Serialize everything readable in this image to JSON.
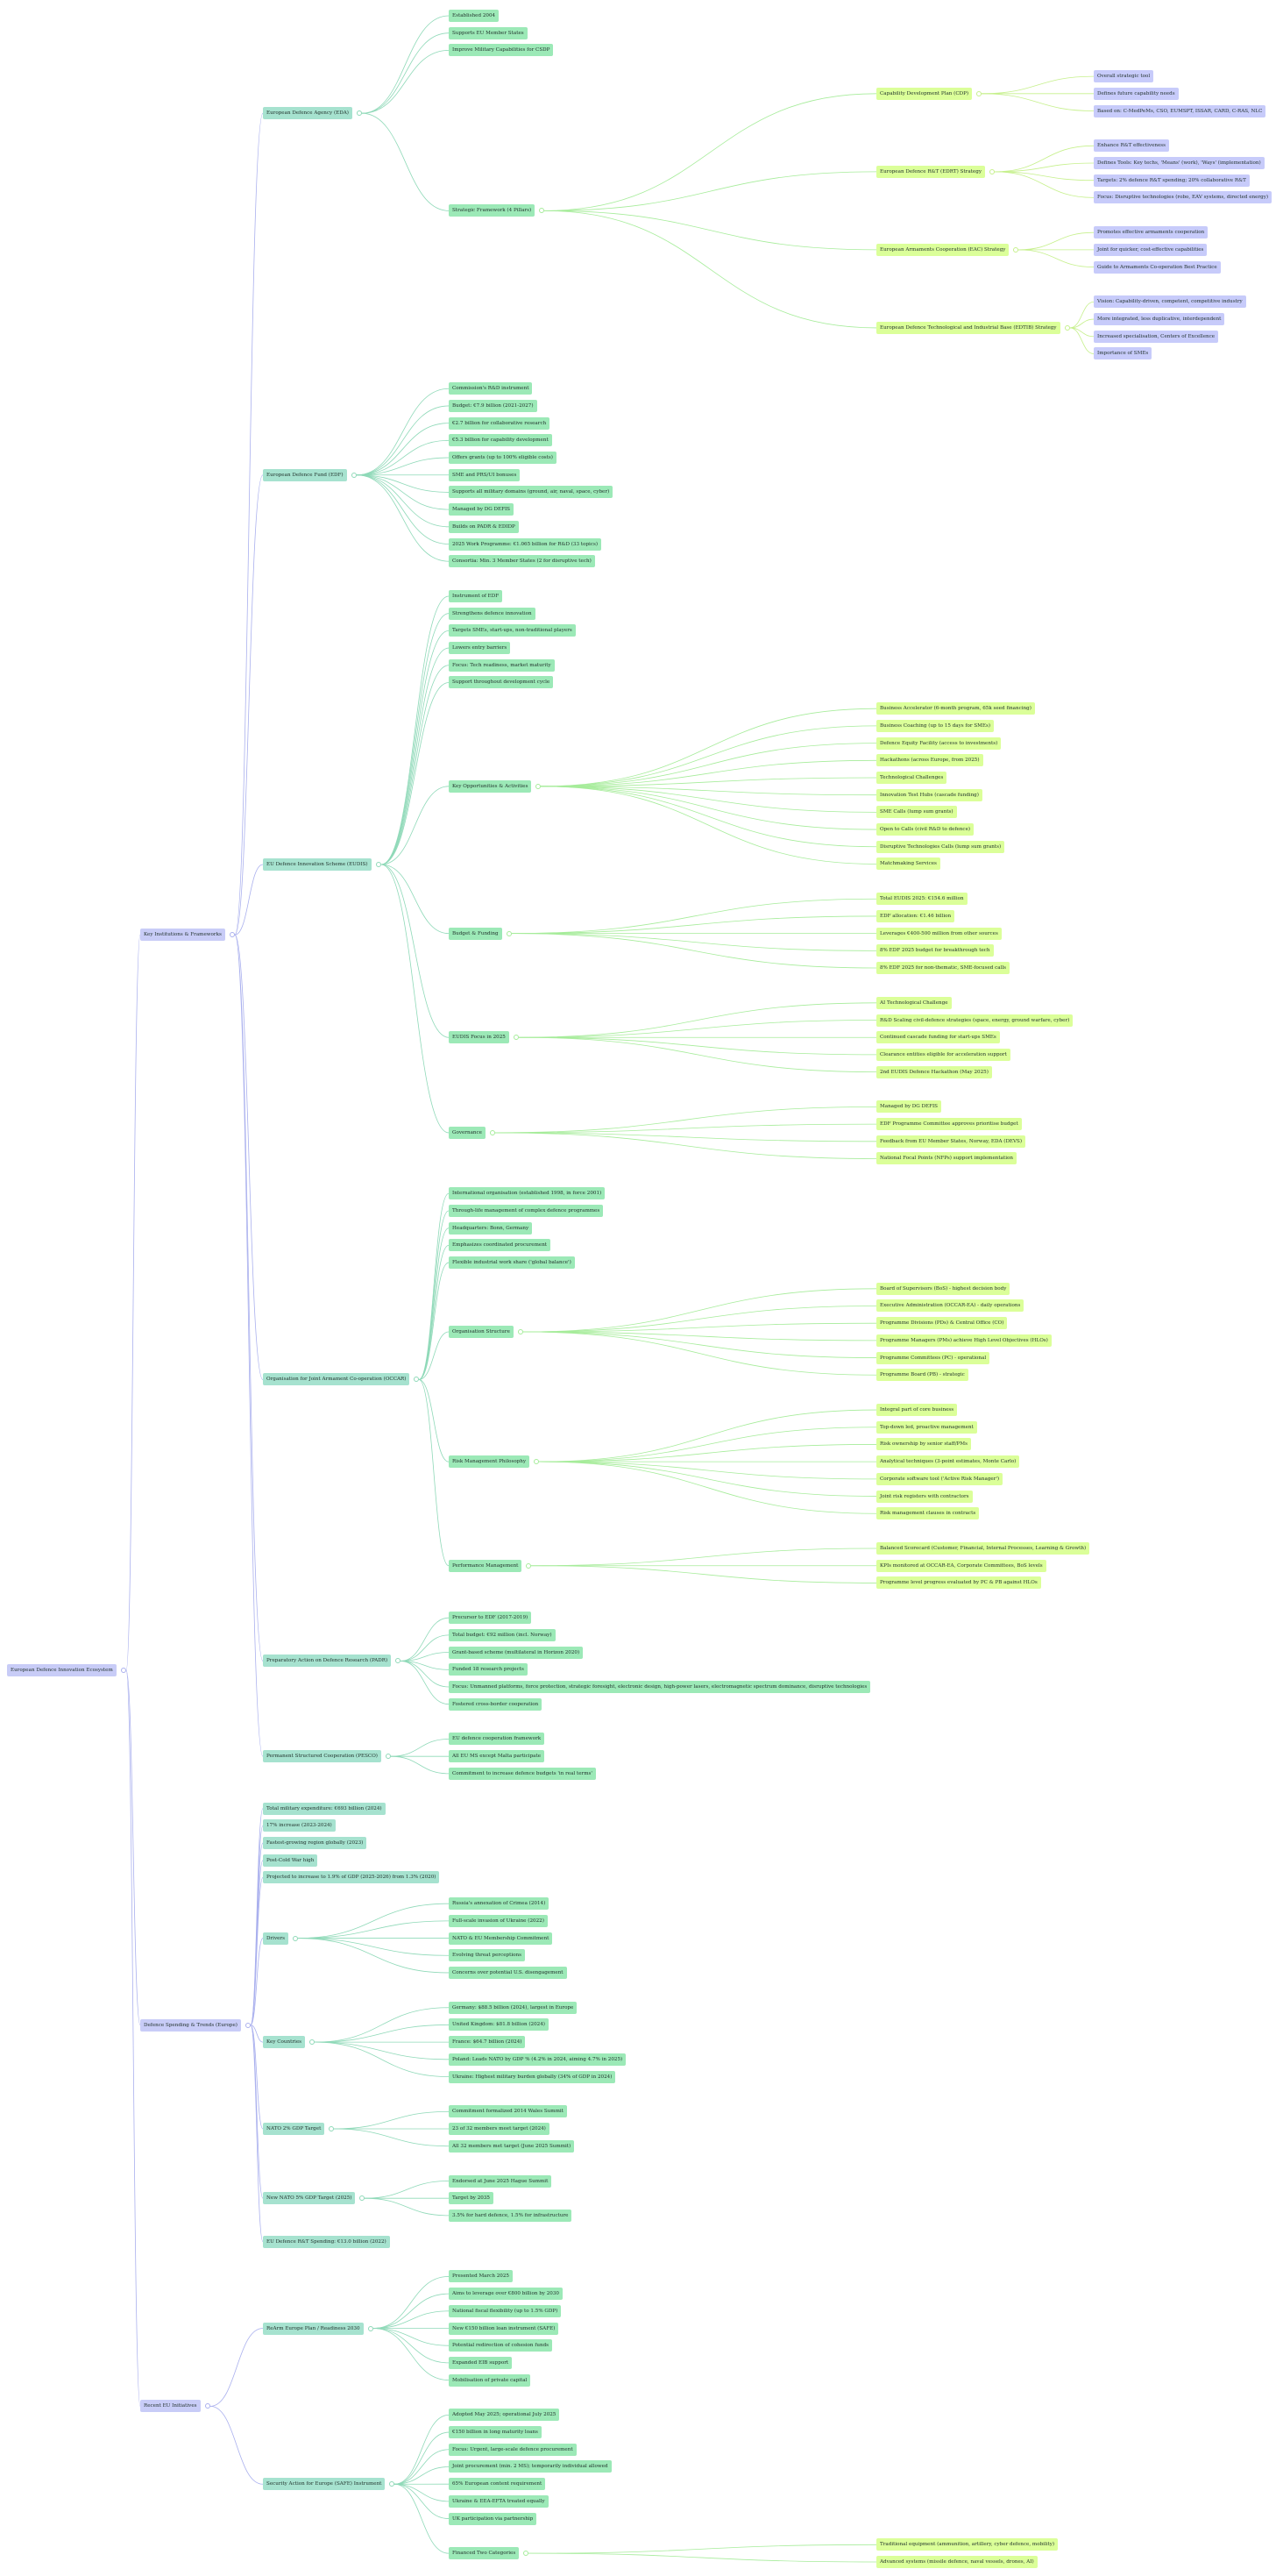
{
  "colors": {
    "level0": "#c8ccf7",
    "level1": "#c8ccf7",
    "level2": "#a6e2cf",
    "level3": "#9ce9b7",
    "level4": "#dbff99",
    "level5": "#c7cbfa"
  },
  "tree": {
    "label": "European Defence Innovation Ecosystem",
    "children": [
      {
        "label": "Key Institutions & Frameworks",
        "children": [
          {
            "label": "European Defence Agency (EDA)",
            "children": [
              {
                "label": "Established 2004"
              },
              {
                "label": "Supports EU Member States"
              },
              {
                "label": "Improve Military Capabilities for CSDP"
              },
              {
                "label": "Strategic Framework (4 Pillars)",
                "children": [
                  {
                    "label": "Capability Development Plan (CDP)",
                    "children": [
                      {
                        "label": "Overall strategic tool"
                      },
                      {
                        "label": "Defines future capability needs"
                      },
                      {
                        "label": "Based on: C-MedPeMs, CSO, EUMSPT, ISSAR, CARD, C-RAS, NLC"
                      }
                    ]
                  },
                  {
                    "label": "European Defence R&T (EDRT) Strategy",
                    "children": [
                      {
                        "label": "Enhance R&T effectiveness"
                      },
                      {
                        "label": "Defines Tools: Key techs, 'Means' (work), 'Ways' (implementation)"
                      },
                      {
                        "label": "Targets: 2% defence R&T spending; 20% collaborative R&T"
                      },
                      {
                        "label": "Focus: Disruptive technologies (robo, EAV systems, directed energy)"
                      }
                    ]
                  },
                  {
                    "label": "European Armaments Cooperation (EAC) Strategy",
                    "children": [
                      {
                        "label": "Promotes effective armaments cooperation"
                      },
                      {
                        "label": "Joint for quicker, cost-effective capabilities"
                      },
                      {
                        "label": "Guide to Armaments Co-operation Best Practice"
                      }
                    ]
                  },
                  {
                    "label": "European Defence Technological and Industrial Base (EDTIB) Strategy",
                    "children": [
                      {
                        "label": "Vision: Capability-driven, competent, competitive industry"
                      },
                      {
                        "label": "More integrated, less duplicative, interdependent"
                      },
                      {
                        "label": "Increased specialisation, Centers of Excellence"
                      },
                      {
                        "label": "Importance of SMEs"
                      }
                    ]
                  }
                ]
              }
            ]
          },
          {
            "label": "European Defence Fund (EDF)",
            "children": [
              {
                "label": "Commission's R&D instrument"
              },
              {
                "label": "Budget: €7.9 billion (2021-2027)"
              },
              {
                "label": "€2.7 billion for collaborative research"
              },
              {
                "label": "€5.3 billion for capability development"
              },
              {
                "label": "Offers grants (up to 100% eligible costs)"
              },
              {
                "label": "SME and PRS/UI bonuses"
              },
              {
                "label": "Supports all military domains (ground, air, naval, space, cyber)"
              },
              {
                "label": "Managed by DG DEFIS"
              },
              {
                "label": "Builds on PADR & EDIDP"
              },
              {
                "label": "2025 Work Programme: €1.065 billion for R&D (33 topics)"
              },
              {
                "label": "Consortia: Min. 3 Member States (2 for disruptive tech)"
              }
            ]
          },
          {
            "label": "EU Defence Innovation Scheme (EUDIS)",
            "children": [
              {
                "label": "Instrument of EDF"
              },
              {
                "label": "Strengthens defence innovation"
              },
              {
                "label": "Targets SMEs, start-ups, non-traditional players"
              },
              {
                "label": "Lowers entry barriers"
              },
              {
                "label": "Focus: Tech readiness, market maturity"
              },
              {
                "label": "Support throughout development cycle"
              },
              {
                "label": "Key Opportunities & Activities",
                "children": [
                  {
                    "label": "Business Accelerator (6-month program, 65k seed financing)"
                  },
                  {
                    "label": "Business Coaching (up to 15 days for SMEs)"
                  },
                  {
                    "label": "Defence Equity Facility (access to investments)"
                  },
                  {
                    "label": "Hackathons (across Europe, from 2025)"
                  },
                  {
                    "label": "Technological Challenges"
                  },
                  {
                    "label": "Innovation Test Hubs (cascade funding)"
                  },
                  {
                    "label": "SME Calls (lump sum grants)"
                  },
                  {
                    "label": "Open to Calls (civil R&D to defence)"
                  },
                  {
                    "label": "Disruptive Technologies Calls (lump sum grants)"
                  },
                  {
                    "label": "Matchmaking Services"
                  }
                ]
              },
              {
                "label": "Budget & Funding",
                "children": [
                  {
                    "label": "Total EUDIS 2025: €154.6 million"
                  },
                  {
                    "label": "EDF allocation: €1.46 billion"
                  },
                  {
                    "label": "Leverages €400-500 million from other sources"
                  },
                  {
                    "label": "8% EDF 2025 budget for breakthrough tech"
                  },
                  {
                    "label": "8% EDF 2025 for non-thematic, SME-focused calls"
                  }
                ]
              },
              {
                "label": "EUDIS Focus in 2025",
                "children": [
                  {
                    "label": "AI Technological Challenge"
                  },
                  {
                    "label": "R&D Scaling civil-defence strategies (space, energy, ground warfare, cyber)"
                  },
                  {
                    "label": "Continued cascade funding for start-ups SMEs"
                  },
                  {
                    "label": "Clearance entities eligible for acceleration support"
                  },
                  {
                    "label": "2nd EUDIS Defence Hackathon (May 2025)"
                  }
                ]
              },
              {
                "label": "Governance",
                "children": [
                  {
                    "label": "Managed by DG DEFIS"
                  },
                  {
                    "label": "EDF Programme Committee approves prioritise budget"
                  },
                  {
                    "label": "Feedback from EU Member States, Norway, EDA (DEVS)"
                  },
                  {
                    "label": "National Focal Points (NFPs) support implementation"
                  }
                ]
              }
            ]
          },
          {
            "label": "Organisation for Joint Armament Co-operation (OCCAR)",
            "children": [
              {
                "label": "International organisation (established 1998, in force 2001)"
              },
              {
                "label": "Through-life management of complex defence programmes"
              },
              {
                "label": "Headquarters: Bonn, Germany"
              },
              {
                "label": "Emphasizes coordinated procurement"
              },
              {
                "label": "Flexible industrial work share ('global balance')"
              },
              {
                "label": "Organisation Structure",
                "children": [
                  {
                    "label": "Board of Supervisors (BoS) - highest decision body"
                  },
                  {
                    "label": "Executive Administration (OCCAR-EA) - daily operations"
                  },
                  {
                    "label": "Programme Divisions (PDs) & Central Office (CO)"
                  },
                  {
                    "label": "Programme Managers (PMs) achieve High Level Objectives (HLOs)"
                  },
                  {
                    "label": "Programme Committees (PC) - operational"
                  },
                  {
                    "label": "Programme Board (PB) - strategic"
                  }
                ]
              },
              {
                "label": "Risk Management Philosophy",
                "children": [
                  {
                    "label": "Integral part of core business"
                  },
                  {
                    "label": "Top-down led, proactive management"
                  },
                  {
                    "label": "Risk ownership by senior staff/PMs"
                  },
                  {
                    "label": "Analytical techniques (3-point estimates, Monte Carlo)"
                  },
                  {
                    "label": "Corporate software tool ('Active Risk Manager')"
                  },
                  {
                    "label": "Joint risk registers with contractors"
                  },
                  {
                    "label": "Risk management clauses in contracts"
                  }
                ]
              },
              {
                "label": "Performance Management",
                "children": [
                  {
                    "label": "Balanced Scorecard (Customer, Financial, Internal Processes, Learning & Growth)"
                  },
                  {
                    "label": "KPIs monitored at OCCAR-EA, Corporate Committees, BoS levels"
                  },
                  {
                    "label": "Programme level progress evaluated by PC & PB against HLOs"
                  }
                ]
              }
            ]
          },
          {
            "label": "Preparatory Action on Defence Research (PADR)",
            "children": [
              {
                "label": "Precursor to EDF (2017-2019)"
              },
              {
                "label": "Total budget: €92 million (incl. Norway)"
              },
              {
                "label": "Grant-based scheme (multilateral in Horizon 2020)"
              },
              {
                "label": "Funded 18 research projects"
              },
              {
                "label": "Focus: Unmanned platforms, force protection, strategic foresight, electronic design, high-power lasers, electromagnetic spectrum dominance, disruptive technologies"
              },
              {
                "label": "Fostered cross-border cooperation"
              }
            ]
          },
          {
            "label": "Permanent Structured Cooperation (PESCO)",
            "children": [
              {
                "label": "EU defence cooperation framework"
              },
              {
                "label": "All EU MS except Malta participate"
              },
              {
                "label": "Commitment to increase defence budgets 'in real terms'"
              }
            ]
          }
        ]
      },
      {
        "label": "Defence Spending & Trends (Europe)",
        "children": [
          {
            "label": "Total military expenditure: €693 billion (2024)"
          },
          {
            "label": "17% increase (2023-2024)"
          },
          {
            "label": "Fastest-growing region globally (2023)"
          },
          {
            "label": "Post-Cold War high"
          },
          {
            "label": "Projected to increase to 1.9% of GDP (2025-2026) from 1.3% (2020)"
          },
          {
            "label": "Drivers",
            "children": [
              {
                "label": "Russia's annexation of Crimea (2014)"
              },
              {
                "label": "Full-scale invasion of Ukraine (2022)"
              },
              {
                "label": "NATO & EU Membership Commitment"
              },
              {
                "label": "Evolving threat perceptions"
              },
              {
                "label": "Concerns over potential U.S. disengagement"
              }
            ]
          },
          {
            "label": "Key Countries",
            "children": [
              {
                "label": "Germany: $88.5 billion (2024), largest in Europe"
              },
              {
                "label": "United Kingdom: $81.8 billion (2024)"
              },
              {
                "label": "France: $64.7 billion (2024)"
              },
              {
                "label": "Poland: Leads NATO by GDP % (4.2% in 2024, aiming 4.7% in 2025)"
              },
              {
                "label": "Ukraine: Highest military burden globally (34% of GDP in 2024)"
              }
            ]
          },
          {
            "label": "NATO 2% GDP Target",
            "children": [
              {
                "label": "Commitment formalized 2014 Wales Summit"
              },
              {
                "label": "23 of 32 members meet target (2024)"
              },
              {
                "label": "All 32 members met target (June 2025 Summit)"
              }
            ]
          },
          {
            "label": "New NATO 5% GDP Target (2025)",
            "children": [
              {
                "label": "Endorsed at June 2025 Hague Summit"
              },
              {
                "label": "Target by 2035"
              },
              {
                "label": "3.5% for hard defence, 1.5% for infrastructure"
              }
            ]
          },
          {
            "label": "EU Defence R&T Spending: €13.0 billion (2022)"
          }
        ]
      },
      {
        "label": "Recent EU Initiatives",
        "children": [
          {
            "label": "ReArm Europe Plan / Readiness 2030",
            "children": [
              {
                "label": "Presented March 2025"
              },
              {
                "label": "Aims to leverage over €800 billion by 2030"
              },
              {
                "label": "National fiscal flexibility (up to 1.5% GDP)"
              },
              {
                "label": "New €150 billion loan instrument (SAFE)"
              },
              {
                "label": "Potential redirection of cohesion funds"
              },
              {
                "label": "Expanded EIB support"
              },
              {
                "label": "Mobilisation of private capital"
              }
            ]
          },
          {
            "label": "Security Action for Europe (SAFE) Instrument",
            "children": [
              {
                "label": "Adopted May 2025; operational July 2025"
              },
              {
                "label": "€150 billion in long maturity loans"
              },
              {
                "label": "Focus: Urgent, large-scale defence procurement"
              },
              {
                "label": "Joint procurement (min. 2 MS); temporarily individual allowed"
              },
              {
                "label": "65% European content requirement"
              },
              {
                "label": "Ukraine & EEA-EFTA treated equally"
              },
              {
                "label": "UK participation via partnership"
              },
              {
                "label": "Financed Two Categories",
                "children": [
                  {
                    "label": "Traditional equipment (ammunition, artillery, cyber defence, mobility)"
                  },
                  {
                    "label": "Advanced systems (missile defence, naval vessels, drones, AI)"
                  }
                ]
              }
            ]
          }
        ]
      }
    ]
  }
}
